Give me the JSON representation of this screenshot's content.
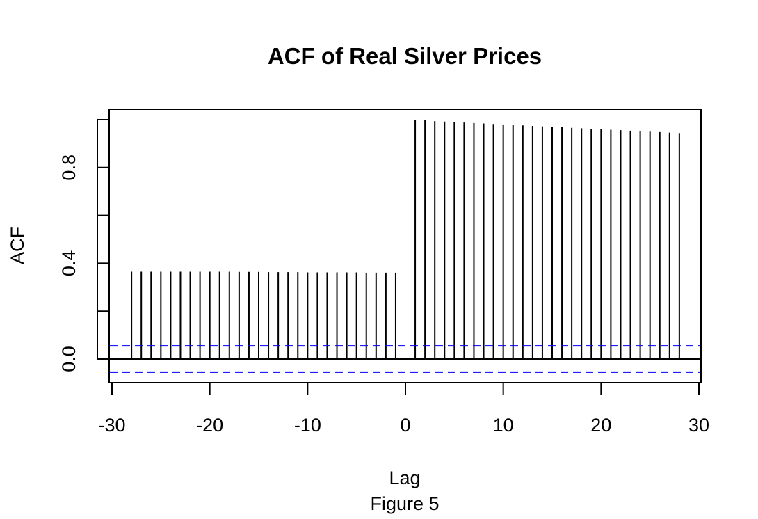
{
  "chart_data": {
    "type": "bar",
    "title": "ACF of Real Silver Prices",
    "xlabel": "Lag",
    "ylabel": "ACF",
    "caption": "Figure 5",
    "xlim": [
      -30,
      30
    ],
    "ylim": [
      -0.1,
      1.0
    ],
    "x_ticks": [
      -30,
      -20,
      -10,
      0,
      10,
      20,
      30
    ],
    "x_tick_labels": [
      "-30",
      "-20",
      "-10",
      "0",
      "10",
      "20",
      "30"
    ],
    "y_ticks": [
      0.0,
      0.2,
      0.4,
      0.6,
      0.8,
      1.0
    ],
    "y_tick_labels": [
      "0.0",
      "",
      "0.4",
      "",
      "0.8",
      ""
    ],
    "confidence_bounds": [
      0.055,
      -0.055
    ],
    "confidence_color": "#0000ff",
    "grid": false,
    "series": [
      {
        "x": [
          -28,
          -27,
          -26,
          -25,
          -24,
          -23,
          -22,
          -21,
          -20,
          -19,
          -18,
          -17,
          -16,
          -15,
          -14,
          -13,
          -12,
          -11,
          -10,
          -9,
          -8,
          -7,
          -6,
          -5,
          -4,
          -3,
          -2,
          -1,
          1,
          2,
          3,
          4,
          5,
          6,
          7,
          8,
          9,
          10,
          11,
          12,
          13,
          14,
          15,
          16,
          17,
          18,
          19,
          20,
          21,
          22,
          23,
          24,
          25,
          26,
          27,
          28
        ],
        "values": [
          0.365,
          0.365,
          0.365,
          0.365,
          0.365,
          0.365,
          0.365,
          0.365,
          0.365,
          0.365,
          0.365,
          0.364,
          0.364,
          0.364,
          0.363,
          0.363,
          0.363,
          0.363,
          0.362,
          0.362,
          0.362,
          0.362,
          0.362,
          0.362,
          0.361,
          0.361,
          0.361,
          0.361,
          1.0,
          0.997,
          0.994,
          0.992,
          0.99,
          0.988,
          0.986,
          0.984,
          0.982,
          0.98,
          0.978,
          0.976,
          0.974,
          0.972,
          0.97,
          0.968,
          0.966,
          0.964,
          0.962,
          0.96,
          0.958,
          0.956,
          0.954,
          0.952,
          0.95,
          0.948,
          0.946,
          0.944
        ]
      }
    ]
  }
}
